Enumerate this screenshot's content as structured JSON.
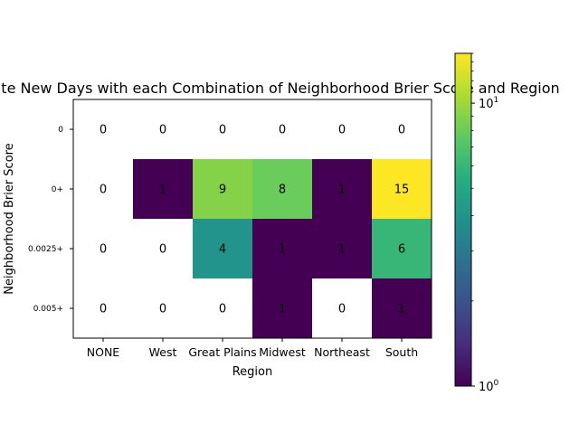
{
  "chart_data": {
    "type": "heatmap",
    "title": "Moderate New Days with each Combination of Neighborhood Brier Score and Region",
    "xlabel": "Region",
    "ylabel": "Neighborhood Brier Score",
    "x_categories": [
      "NONE",
      "West",
      "Great Plains",
      "Midwest",
      "Northeast",
      "South"
    ],
    "y_categories": [
      "0",
      "0+",
      "0.0025+",
      "0.005+"
    ],
    "values": [
      [
        0,
        0,
        0,
        0,
        0,
        0
      ],
      [
        0,
        1,
        9,
        8,
        1,
        15
      ],
      [
        0,
        0,
        4,
        1,
        1,
        6
      ],
      [
        0,
        0,
        0,
        1,
        0,
        1
      ]
    ],
    "color_scale": {
      "type": "log",
      "colormap": "viridis",
      "min": 1,
      "max": 15,
      "zero_color": "#ffffff",
      "tick_labels": [
        "10^0",
        "10^1"
      ],
      "tick_values": [
        1,
        10
      ]
    }
  }
}
